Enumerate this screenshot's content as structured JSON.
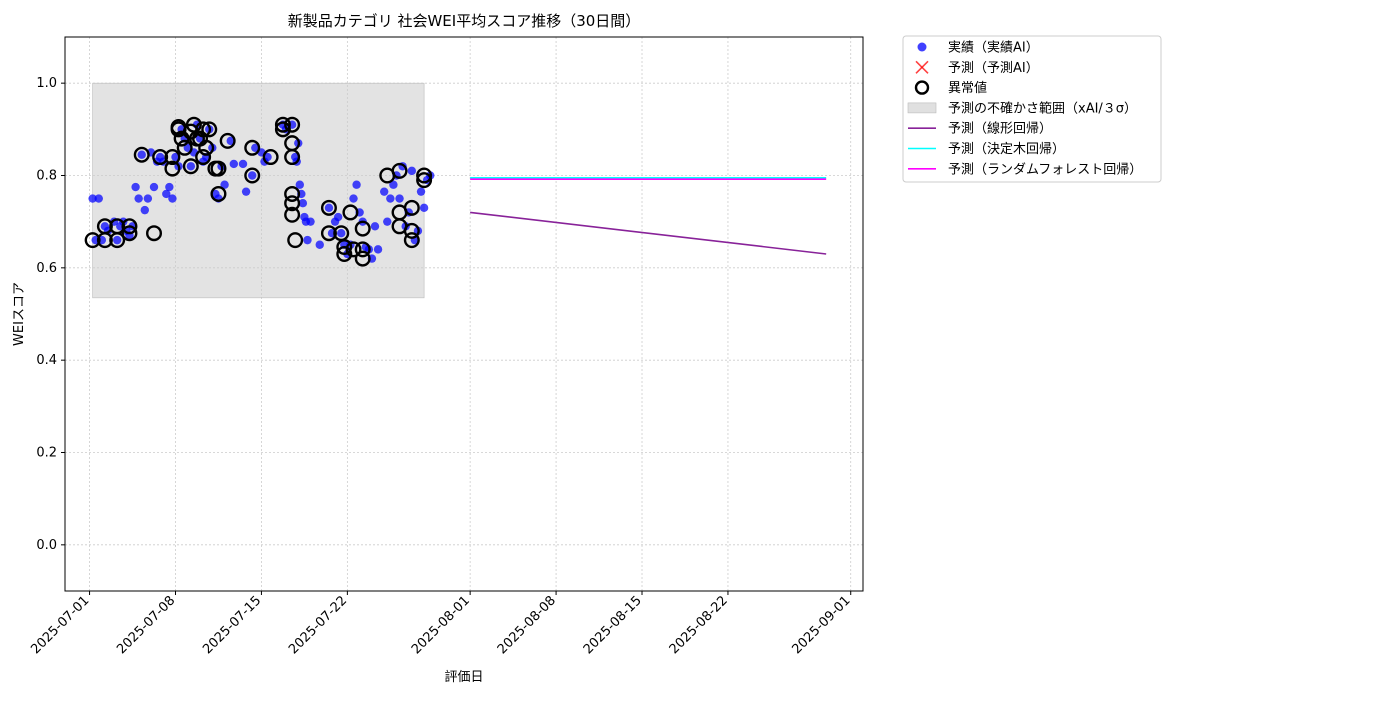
{
  "chart_data": {
    "type": "scatter",
    "title": "新製品カテゴリ 社会WEI平均スコア推移（30日間）",
    "xlabel": "評価日",
    "ylabel": "WEIスコア",
    "ylim": [
      -0.1,
      1.1
    ],
    "xlim": [
      "2025-06-29",
      "2025-09-02"
    ],
    "y_ticks": [
      "0.0",
      "0.2",
      "0.4",
      "0.6",
      "0.8",
      "1.0"
    ],
    "x_ticks": [
      "2025-07-01",
      "2025-07-08",
      "2025-07-15",
      "2025-07-22",
      "2025-08-01",
      "2025-08-08",
      "2025-08-15",
      "2025-08-22",
      "2025-09-01"
    ],
    "grid": true,
    "legend_position": "outside-upper-right",
    "series": [
      {
        "name": "実績（実績AI）",
        "kind": "scatter",
        "color": "#0000ff",
        "points": [
          [
            "2025-07-01T06:00",
            0.75
          ],
          [
            "2025-07-01T12:00",
            0.66
          ],
          [
            "2025-07-01T18:00",
            0.75
          ],
          [
            "2025-07-02T00:00",
            0.66
          ],
          [
            "2025-07-02T06:00",
            0.69
          ],
          [
            "2025-07-02T12:00",
            0.68
          ],
          [
            "2025-07-03T00:00",
            0.7
          ],
          [
            "2025-07-03T06:00",
            0.66
          ],
          [
            "2025-07-03T12:00",
            0.69
          ],
          [
            "2025-07-03T18:00",
            0.7
          ],
          [
            "2025-07-04T00:00",
            0.68
          ],
          [
            "2025-07-04T06:00",
            0.67
          ],
          [
            "2025-07-04T12:00",
            0.69
          ],
          [
            "2025-07-04T18:00",
            0.775
          ],
          [
            "2025-07-05T00:00",
            0.75
          ],
          [
            "2025-07-05T06:00",
            0.845
          ],
          [
            "2025-07-05T12:00",
            0.725
          ],
          [
            "2025-07-05T18:00",
            0.75
          ],
          [
            "2025-07-06T00:00",
            0.85
          ],
          [
            "2025-07-06T06:00",
            0.775
          ],
          [
            "2025-07-06T12:00",
            0.83
          ],
          [
            "2025-07-06T18:00",
            0.84
          ],
          [
            "2025-07-07T00:00",
            0.83
          ],
          [
            "2025-07-07T06:00",
            0.76
          ],
          [
            "2025-07-07T12:00",
            0.775
          ],
          [
            "2025-07-07T18:00",
            0.75
          ],
          [
            "2025-07-08T00:00",
            0.84
          ],
          [
            "2025-07-08T06:00",
            0.82
          ],
          [
            "2025-07-08T12:00",
            0.9
          ],
          [
            "2025-07-08T18:00",
            0.88
          ],
          [
            "2025-07-09T00:00",
            0.86
          ],
          [
            "2025-07-09T06:00",
            0.82
          ],
          [
            "2025-07-09T12:00",
            0.85
          ],
          [
            "2025-07-09T18:00",
            0.91
          ],
          [
            "2025-07-10T00:00",
            0.88
          ],
          [
            "2025-07-10T06:00",
            0.83
          ],
          [
            "2025-07-10T12:00",
            0.84
          ],
          [
            "2025-07-10T18:00",
            0.9
          ],
          [
            "2025-07-11T00:00",
            0.86
          ],
          [
            "2025-07-11T06:00",
            0.76
          ],
          [
            "2025-07-11T12:00",
            0.75
          ],
          [
            "2025-07-11T18:00",
            0.82
          ],
          [
            "2025-07-12T00:00",
            0.78
          ],
          [
            "2025-07-12T12:00",
            0.875
          ],
          [
            "2025-07-12T18:00",
            0.825
          ],
          [
            "2025-07-13T12:00",
            0.825
          ],
          [
            "2025-07-13T18:00",
            0.765
          ],
          [
            "2025-07-14T06:00",
            0.8
          ],
          [
            "2025-07-14T12:00",
            0.86
          ],
          [
            "2025-07-15T00:00",
            0.85
          ],
          [
            "2025-07-15T06:00",
            0.83
          ],
          [
            "2025-07-15T12:00",
            0.84
          ],
          [
            "2025-07-16T18:00",
            0.91
          ],
          [
            "2025-07-17T00:00",
            0.9
          ],
          [
            "2025-07-17T12:00",
            0.91
          ],
          [
            "2025-07-17T18:00",
            0.84
          ],
          [
            "2025-07-17T21:00",
            0.83
          ],
          [
            "2025-07-18T00:00",
            0.87
          ],
          [
            "2025-07-18T03:00",
            0.78
          ],
          [
            "2025-07-18T06:00",
            0.76
          ],
          [
            "2025-07-18T09:00",
            0.74
          ],
          [
            "2025-07-18T12:00",
            0.71
          ],
          [
            "2025-07-18T15:00",
            0.7
          ],
          [
            "2025-07-18T18:00",
            0.66
          ],
          [
            "2025-07-19T00:00",
            0.7
          ],
          [
            "2025-07-19T18:00",
            0.65
          ],
          [
            "2025-07-20T12:00",
            0.73
          ],
          [
            "2025-07-20T18:00",
            0.675
          ],
          [
            "2025-07-21T00:00",
            0.7
          ],
          [
            "2025-07-21T06:00",
            0.71
          ],
          [
            "2025-07-21T12:00",
            0.675
          ],
          [
            "2025-07-21T18:00",
            0.65
          ],
          [
            "2025-07-22T00:00",
            0.63
          ],
          [
            "2025-07-22T06:00",
            0.65
          ],
          [
            "2025-07-22T12:00",
            0.75
          ],
          [
            "2025-07-22T18:00",
            0.78
          ],
          [
            "2025-07-23T00:00",
            0.72
          ],
          [
            "2025-07-23T06:00",
            0.7
          ],
          [
            "2025-07-23T12:00",
            0.645
          ],
          [
            "2025-07-23T18:00",
            0.64
          ],
          [
            "2025-07-24T00:00",
            0.62
          ],
          [
            "2025-07-24T06:00",
            0.69
          ],
          [
            "2025-07-24T12:00",
            0.64
          ],
          [
            "2025-07-25T00:00",
            0.765
          ],
          [
            "2025-07-25T06:00",
            0.7
          ],
          [
            "2025-07-25T12:00",
            0.75
          ],
          [
            "2025-07-25T18:00",
            0.78
          ],
          [
            "2025-07-26T00:00",
            0.8
          ],
          [
            "2025-07-26T06:00",
            0.75
          ],
          [
            "2025-07-26T12:00",
            0.82
          ],
          [
            "2025-07-26T18:00",
            0.69
          ],
          [
            "2025-07-27T00:00",
            0.72
          ],
          [
            "2025-07-27T06:00",
            0.81
          ],
          [
            "2025-07-27T12:00",
            0.66
          ],
          [
            "2025-07-27T18:00",
            0.68
          ],
          [
            "2025-07-28T00:00",
            0.765
          ],
          [
            "2025-07-28T06:00",
            0.73
          ],
          [
            "2025-07-28T12:00",
            0.79
          ],
          [
            "2025-07-28T18:00",
            0.8
          ]
        ]
      },
      {
        "name": "予測（予測AI）",
        "kind": "scatter",
        "marker": "x",
        "color": "#ff0000",
        "points": []
      },
      {
        "name": "異常値",
        "kind": "scatter",
        "marker": "ring",
        "color": "#000000",
        "points": [
          [
            "2025-07-01T06:00",
            0.66
          ],
          [
            "2025-07-02T06:00",
            0.66
          ],
          [
            "2025-07-02T06:00",
            0.69
          ],
          [
            "2025-07-03T06:00",
            0.66
          ],
          [
            "2025-07-03T06:00",
            0.69
          ],
          [
            "2025-07-04T06:00",
            0.675
          ],
          [
            "2025-07-04T06:00",
            0.69
          ],
          [
            "2025-07-05T06:00",
            0.845
          ],
          [
            "2025-07-06T06:00",
            0.675
          ],
          [
            "2025-07-06T18:00",
            0.84
          ],
          [
            "2025-07-07T18:00",
            0.815
          ],
          [
            "2025-07-07T18:00",
            0.84
          ],
          [
            "2025-07-08T06:00",
            0.905
          ],
          [
            "2025-07-08T06:00",
            0.9
          ],
          [
            "2025-07-08T12:00",
            0.88
          ],
          [
            "2025-07-08T18:00",
            0.86
          ],
          [
            "2025-07-09T06:00",
            0.82
          ],
          [
            "2025-07-09T06:00",
            0.895
          ],
          [
            "2025-07-09T12:00",
            0.91
          ],
          [
            "2025-07-09T18:00",
            0.88
          ],
          [
            "2025-07-10T00:00",
            0.88
          ],
          [
            "2025-07-10T06:00",
            0.9
          ],
          [
            "2025-07-10T06:00",
            0.84
          ],
          [
            "2025-07-10T12:00",
            0.86
          ],
          [
            "2025-07-10T18:00",
            0.9
          ],
          [
            "2025-07-11T06:00",
            0.815
          ],
          [
            "2025-07-11T12:00",
            0.815
          ],
          [
            "2025-07-11T12:00",
            0.76
          ],
          [
            "2025-07-12T06:00",
            0.875
          ],
          [
            "2025-07-14T06:00",
            0.8
          ],
          [
            "2025-07-14T06:00",
            0.86
          ],
          [
            "2025-07-15T18:00",
            0.84
          ],
          [
            "2025-07-16T18:00",
            0.91
          ],
          [
            "2025-07-16T18:00",
            0.9
          ],
          [
            "2025-07-17T12:00",
            0.91
          ],
          [
            "2025-07-17T12:00",
            0.87
          ],
          [
            "2025-07-17T12:00",
            0.84
          ],
          [
            "2025-07-17T12:00",
            0.76
          ],
          [
            "2025-07-17T12:00",
            0.74
          ],
          [
            "2025-07-17T12:00",
            0.715
          ],
          [
            "2025-07-17T18:00",
            0.66
          ],
          [
            "2025-07-20T12:00",
            0.73
          ],
          [
            "2025-07-20T12:00",
            0.675
          ],
          [
            "2025-07-21T12:00",
            0.675
          ],
          [
            "2025-07-21T18:00",
            0.645
          ],
          [
            "2025-07-21T18:00",
            0.63
          ],
          [
            "2025-07-22T06:00",
            0.72
          ],
          [
            "2025-07-22T12:00",
            0.64
          ],
          [
            "2025-07-23T06:00",
            0.62
          ],
          [
            "2025-07-23T06:00",
            0.64
          ],
          [
            "2025-07-23T06:00",
            0.685
          ],
          [
            "2025-07-25T06:00",
            0.8
          ],
          [
            "2025-07-26T06:00",
            0.81
          ],
          [
            "2025-07-26T06:00",
            0.72
          ],
          [
            "2025-07-26T06:00",
            0.69
          ],
          [
            "2025-07-27T06:00",
            0.68
          ],
          [
            "2025-07-27T06:00",
            0.66
          ],
          [
            "2025-07-27T06:00",
            0.73
          ],
          [
            "2025-07-28T06:00",
            0.8
          ],
          [
            "2025-07-28T06:00",
            0.79
          ]
        ]
      },
      {
        "name": "予測の不確かさ範囲（xAI/３σ）",
        "kind": "band",
        "color": "#cccccc",
        "x_range": [
          "2025-07-01T06:00",
          "2025-07-28T06:00"
        ],
        "y_range": [
          0.535,
          1.0
        ]
      },
      {
        "name": "予測（線形回帰）",
        "kind": "line",
        "color": "#882299",
        "points": [
          [
            "2025-08-01",
            0.72
          ],
          [
            "2025-08-30",
            0.63
          ]
        ]
      },
      {
        "name": "予測（決定木回帰）",
        "kind": "line",
        "color": "#00ffff",
        "points": [
          [
            "2025-08-01",
            0.795
          ],
          [
            "2025-08-30",
            0.795
          ]
        ]
      },
      {
        "name": "予測（ランダムフォレスト回帰）",
        "kind": "line",
        "color": "#ff00ff",
        "points": [
          [
            "2025-08-01",
            0.792
          ],
          [
            "2025-08-30",
            0.792
          ]
        ]
      }
    ]
  }
}
